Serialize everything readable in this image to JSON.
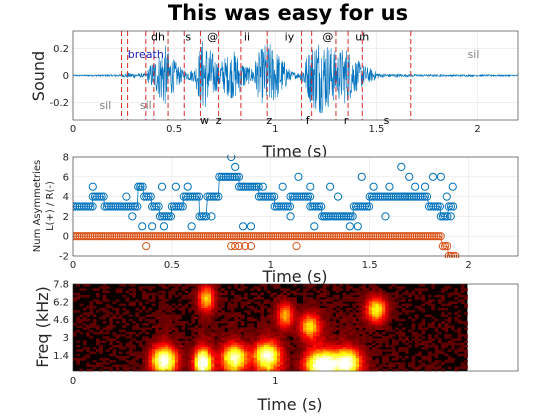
{
  "chart_data": [
    {
      "type": "line",
      "name": "waveform",
      "title": "This was easy for us",
      "xlabel": "Time (s)",
      "ylabel": "Sound",
      "xlim": [
        0,
        2.2
      ],
      "ylim": [
        -0.33,
        0.33
      ],
      "xticks": [
        0,
        0.5,
        1,
        1.5,
        2
      ],
      "xtick_labels": [
        "0",
        "0.5",
        "1",
        "1.5",
        "2"
      ],
      "yticks": [
        -0.2,
        0,
        0.2
      ],
      "ytick_labels": [
        "-0.2",
        "0",
        "0.2"
      ],
      "grid": true,
      "envelope": [
        {
          "x": 0.0,
          "a": 0.005
        },
        {
          "x": 0.24,
          "a": 0.008
        },
        {
          "x": 0.27,
          "a": 0.02
        },
        {
          "x": 0.36,
          "a": 0.015
        },
        {
          "x": 0.38,
          "a": 0.08
        },
        {
          "x": 0.42,
          "a": 0.15
        },
        {
          "x": 0.45,
          "a": 0.25
        },
        {
          "x": 0.47,
          "a": 0.18
        },
        {
          "x": 0.5,
          "a": 0.12
        },
        {
          "x": 0.55,
          "a": 0.03
        },
        {
          "x": 0.6,
          "a": 0.05
        },
        {
          "x": 0.64,
          "a": 0.28
        },
        {
          "x": 0.68,
          "a": 0.2
        },
        {
          "x": 0.72,
          "a": 0.1
        },
        {
          "x": 0.76,
          "a": 0.15
        },
        {
          "x": 0.8,
          "a": 0.19
        },
        {
          "x": 0.83,
          "a": 0.12
        },
        {
          "x": 0.88,
          "a": 0.05
        },
        {
          "x": 0.92,
          "a": 0.18
        },
        {
          "x": 0.96,
          "a": 0.26
        },
        {
          "x": 1.0,
          "a": 0.2
        },
        {
          "x": 1.04,
          "a": 0.12
        },
        {
          "x": 1.08,
          "a": 0.03
        },
        {
          "x": 1.12,
          "a": 0.02
        },
        {
          "x": 1.17,
          "a": 0.2
        },
        {
          "x": 1.21,
          "a": 0.3
        },
        {
          "x": 1.26,
          "a": 0.25
        },
        {
          "x": 1.3,
          "a": 0.18
        },
        {
          "x": 1.35,
          "a": 0.22
        },
        {
          "x": 1.4,
          "a": 0.12
        },
        {
          "x": 1.46,
          "a": 0.06
        },
        {
          "x": 1.52,
          "a": 0.015
        },
        {
          "x": 1.7,
          "a": 0.008
        },
        {
          "x": 2.2,
          "a": 0.006
        }
      ],
      "segment_boundaries": [
        0.24,
        0.27,
        0.36,
        0.4,
        0.47,
        0.55,
        0.63,
        0.72,
        0.83,
        0.96,
        1.13,
        1.18,
        1.3,
        1.36,
        1.43,
        1.67
      ],
      "phonemes": [
        {
          "label": "sil",
          "x": 0.16,
          "y": -0.22,
          "kind": "sil"
        },
        {
          "label": "sil",
          "x": 0.36,
          "y": -0.22,
          "kind": "sil"
        },
        {
          "label": "breath",
          "x": 0.36,
          "y": 0.16,
          "kind": "breath"
        },
        {
          "label": "dh",
          "x": 0.42,
          "y": 0.29,
          "kind": "top"
        },
        {
          "label": "s",
          "x": 0.57,
          "y": 0.29,
          "kind": "top"
        },
        {
          "label": "@",
          "x": 0.69,
          "y": 0.29,
          "kind": "top"
        },
        {
          "label": "ii",
          "x": 0.86,
          "y": 0.29,
          "kind": "top"
        },
        {
          "label": "iy",
          "x": 1.07,
          "y": 0.29,
          "kind": "top"
        },
        {
          "label": "@",
          "x": 1.26,
          "y": 0.29,
          "kind": "top"
        },
        {
          "label": "uh",
          "x": 1.43,
          "y": 0.29,
          "kind": "top"
        },
        {
          "label": "sil",
          "x": 1.98,
          "y": 0.16,
          "kind": "sil"
        },
        {
          "label": "w",
          "x": 0.65,
          "y": -0.33,
          "kind": "bottom"
        },
        {
          "label": "z",
          "x": 0.72,
          "y": -0.33,
          "kind": "bottom"
        },
        {
          "label": "z",
          "x": 0.97,
          "y": -0.33,
          "kind": "bottom"
        },
        {
          "label": "f",
          "x": 1.16,
          "y": -0.33,
          "kind": "bottom"
        },
        {
          "label": "r",
          "x": 1.35,
          "y": -0.33,
          "kind": "bottom"
        },
        {
          "label": "s",
          "x": 1.55,
          "y": -0.33,
          "kind": "bottom"
        }
      ],
      "colors": {
        "wave": "#0072bd",
        "boundary": "#d62728",
        "grid": "#e6e6e6",
        "axis": "#262626"
      }
    },
    {
      "type": "scatter",
      "name": "asymmetries",
      "xlabel": "Time (s)",
      "ylabel": [
        "Num Asymmetries",
        "L(+) / R(-)"
      ],
      "xlim": [
        0,
        2.25
      ],
      "ylim": [
        -2,
        8
      ],
      "xticks": [
        0,
        0.5,
        1,
        1.5,
        2
      ],
      "xtick_labels": [
        "0",
        "0.5",
        "1",
        "1.5",
        "2"
      ],
      "yticks": [
        -2,
        0,
        2,
        4,
        6,
        8
      ],
      "ytick_labels": [
        "-2",
        "0",
        "2",
        "4",
        "6",
        "8"
      ],
      "grid": true,
      "series": [
        {
          "color": "#0072bd",
          "segments": [
            {
              "x0": 0.0,
              "x1": 0.1,
              "y": 3
            },
            {
              "x0": 0.1,
              "x1": 0.16,
              "y": 4
            },
            {
              "x0": 0.16,
              "x1": 0.33,
              "y": 3
            },
            {
              "x0": 0.33,
              "x1": 0.36,
              "y": 5
            },
            {
              "x0": 0.36,
              "x1": 0.4,
              "y": 4
            },
            {
              "x0": 0.4,
              "x1": 0.44,
              "y": 3
            },
            {
              "x0": 0.44,
              "x1": 0.5,
              "y": 2
            },
            {
              "x0": 0.5,
              "x1": 0.56,
              "y": 3
            },
            {
              "x0": 0.56,
              "x1": 0.64,
              "y": 4
            },
            {
              "x0": 0.64,
              "x1": 0.68,
              "y": 2
            },
            {
              "x0": 0.68,
              "x1": 0.74,
              "y": 4
            },
            {
              "x0": 0.74,
              "x1": 0.84,
              "y": 6
            },
            {
              "x0": 0.84,
              "x1": 0.94,
              "y": 5
            },
            {
              "x0": 0.94,
              "x1": 1.02,
              "y": 4
            },
            {
              "x0": 1.02,
              "x1": 1.1,
              "y": 3
            },
            {
              "x0": 1.1,
              "x1": 1.2,
              "y": 4
            },
            {
              "x0": 1.2,
              "x1": 1.26,
              "y": 3
            },
            {
              "x0": 1.26,
              "x1": 1.42,
              "y": 2
            },
            {
              "x0": 1.42,
              "x1": 1.5,
              "y": 3
            },
            {
              "x0": 1.5,
              "x1": 1.68,
              "y": 4
            },
            {
              "x0": 1.68,
              "x1": 1.8,
              "y": 4
            },
            {
              "x0": 1.8,
              "x1": 1.86,
              "y": 3
            },
            {
              "x0": 1.86,
              "x1": 1.9,
              "y": 2
            },
            {
              "x0": 1.9,
              "x1": 1.93,
              "y": 3
            }
          ],
          "scatter": [
            {
              "x": 0.1,
              "y": 5
            },
            {
              "x": 0.27,
              "y": 4
            },
            {
              "x": 0.3,
              "y": 2
            },
            {
              "x": 0.34,
              "y": 5
            },
            {
              "x": 0.35,
              "y": 1
            },
            {
              "x": 0.4,
              "y": 1
            },
            {
              "x": 0.45,
              "y": 5
            },
            {
              "x": 0.46,
              "y": 1
            },
            {
              "x": 0.52,
              "y": 5
            },
            {
              "x": 0.58,
              "y": 5
            },
            {
              "x": 0.6,
              "y": 1
            },
            {
              "x": 0.7,
              "y": 2
            },
            {
              "x": 0.8,
              "y": 8
            },
            {
              "x": 0.82,
              "y": 7
            },
            {
              "x": 0.86,
              "y": 1
            },
            {
              "x": 0.9,
              "y": 1
            },
            {
              "x": 0.96,
              "y": 5
            },
            {
              "x": 1.06,
              "y": 5
            },
            {
              "x": 1.1,
              "y": 2
            },
            {
              "x": 1.14,
              "y": 6
            },
            {
              "x": 1.2,
              "y": 5
            },
            {
              "x": 1.22,
              "y": 1
            },
            {
              "x": 1.27,
              "y": 2
            },
            {
              "x": 1.3,
              "y": 5
            },
            {
              "x": 1.34,
              "y": 4
            },
            {
              "x": 1.4,
              "y": 1
            },
            {
              "x": 1.44,
              "y": 1
            },
            {
              "x": 1.46,
              "y": 6
            },
            {
              "x": 1.52,
              "y": 5
            },
            {
              "x": 1.58,
              "y": 2
            },
            {
              "x": 1.6,
              "y": 5
            },
            {
              "x": 1.66,
              "y": 7
            },
            {
              "x": 1.7,
              "y": 6
            },
            {
              "x": 1.73,
              "y": 5
            },
            {
              "x": 1.78,
              "y": 5
            },
            {
              "x": 1.82,
              "y": 6
            },
            {
              "x": 1.86,
              "y": 6
            },
            {
              "x": 1.89,
              "y": 4
            },
            {
              "x": 1.91,
              "y": 2
            },
            {
              "x": 1.92,
              "y": 5
            }
          ]
        },
        {
          "color": "#d95319",
          "segments": [
            {
              "x0": 0.0,
              "x1": 1.87,
              "y": 0
            },
            {
              "x0": 1.87,
              "x1": 1.9,
              "y": -1
            },
            {
              "x0": 1.9,
              "x1": 1.94,
              "y": -2
            }
          ],
          "scatter": [
            {
              "x": 0.37,
              "y": -1
            },
            {
              "x": 0.8,
              "y": -1
            },
            {
              "x": 0.82,
              "y": -1
            },
            {
              "x": 0.84,
              "y": -1
            },
            {
              "x": 0.87,
              "y": -1
            },
            {
              "x": 0.9,
              "y": -1
            },
            {
              "x": 1.13,
              "y": -1
            }
          ]
        }
      ]
    },
    {
      "type": "heatmap",
      "name": "spectrogram",
      "xlabel": "Time (s)",
      "ylabel": "Freq (kHz)",
      "xlim": [
        0,
        2.2
      ],
      "ylim": [
        0,
        7.8
      ],
      "xticks": [
        0,
        1
      ],
      "xtick_labels": [
        "0",
        "1"
      ],
      "yticks": [
        1.4,
        3,
        4.6,
        6.2,
        7.8
      ],
      "ytick_labels": [
        "1.4",
        "3",
        "4.6",
        "6.2",
        "7.8"
      ],
      "data_end_x": 1.95,
      "bursts": [
        {
          "x": 0.45,
          "w": 0.06,
          "f": 1.0,
          "i": 0.9
        },
        {
          "x": 0.64,
          "w": 0.04,
          "f": 0.8,
          "i": 1.0
        },
        {
          "x": 0.66,
          "w": 0.04,
          "f": 6.5,
          "i": 0.6
        },
        {
          "x": 0.8,
          "w": 0.06,
          "f": 1.2,
          "i": 0.85
        },
        {
          "x": 0.96,
          "w": 0.06,
          "f": 1.4,
          "i": 0.9
        },
        {
          "x": 1.05,
          "w": 0.04,
          "f": 5.0,
          "i": 0.55
        },
        {
          "x": 1.17,
          "w": 0.05,
          "f": 4.0,
          "i": 0.6
        },
        {
          "x": 1.24,
          "w": 0.08,
          "f": 0.6,
          "i": 1.0
        },
        {
          "x": 1.36,
          "w": 0.06,
          "f": 0.8,
          "i": 0.85
        },
        {
          "x": 1.5,
          "w": 0.05,
          "f": 5.5,
          "i": 0.7
        }
      ]
    }
  ]
}
